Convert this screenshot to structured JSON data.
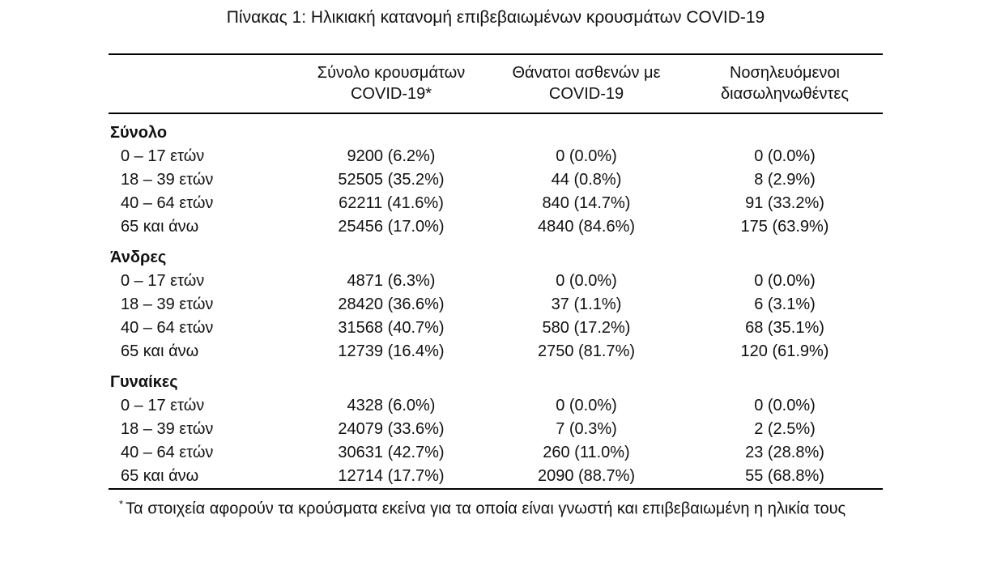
{
  "title": "Πίνακας 1: Ηλικιακή κατανομή επιβεβαιωμένων κρουσμάτων COVID-19",
  "table": {
    "headers": [
      "",
      "Σύνολο κρουσμάτων\nCOVID-19*",
      "Θάνατοι ασθενών με\nCOVID-19",
      "Νοσηλευόμενοι\nδιασωληνωθέντες"
    ],
    "sections": [
      {
        "label": "Σύνολο",
        "rows": [
          {
            "age": "0 – 17 ετών",
            "cases": "9200 (6.2%)",
            "deaths": "0 (0.0%)",
            "intubated": "0 (0.0%)"
          },
          {
            "age": "18 – 39 ετών",
            "cases": "52505 (35.2%)",
            "deaths": "44 (0.8%)",
            "intubated": "8 (2.9%)"
          },
          {
            "age": "40 – 64 ετών",
            "cases": "62211 (41.6%)",
            "deaths": "840 (14.7%)",
            "intubated": "91 (33.2%)"
          },
          {
            "age": "65 και άνω",
            "cases": "25456 (17.0%)",
            "deaths": "4840 (84.6%)",
            "intubated": "175 (63.9%)"
          }
        ]
      },
      {
        "label": "Άνδρες",
        "rows": [
          {
            "age": "0 – 17 ετών",
            "cases": "4871 (6.3%)",
            "deaths": "0 (0.0%)",
            "intubated": "0 (0.0%)"
          },
          {
            "age": "18 – 39 ετών",
            "cases": "28420 (36.6%)",
            "deaths": "37 (1.1%)",
            "intubated": "6 (3.1%)"
          },
          {
            "age": "40 – 64 ετών",
            "cases": "31568 (40.7%)",
            "deaths": "580 (17.2%)",
            "intubated": "68 (35.1%)"
          },
          {
            "age": "65 και άνω",
            "cases": "12739 (16.4%)",
            "deaths": "2750 (81.7%)",
            "intubated": "120 (61.9%)"
          }
        ]
      },
      {
        "label": "Γυναίκες",
        "rows": [
          {
            "age": "0 – 17 ετών",
            "cases": "4328 (6.0%)",
            "deaths": "0 (0.0%)",
            "intubated": "0 (0.0%)"
          },
          {
            "age": "18 – 39 ετών",
            "cases": "24079 (33.6%)",
            "deaths": "7 (0.3%)",
            "intubated": "2 (2.5%)"
          },
          {
            "age": "40 – 64 ετών",
            "cases": "30631 (42.7%)",
            "deaths": "260 (11.0%)",
            "intubated": "23 (28.8%)"
          },
          {
            "age": "65 και άνω",
            "cases": "12714 (17.7%)",
            "deaths": "2090 (88.7%)",
            "intubated": "55 (68.8%)"
          }
        ]
      }
    ]
  },
  "footnote": {
    "marker": "*",
    "text": "Τα στοιχεία αφορούν τα κρούσματα εκείνα για τα οποία είναι γνωστή και επιβεβαιωμένη η ηλικία τους"
  },
  "colors": {
    "text": "#111111",
    "rule": "#000000",
    "background": "#ffffff"
  }
}
